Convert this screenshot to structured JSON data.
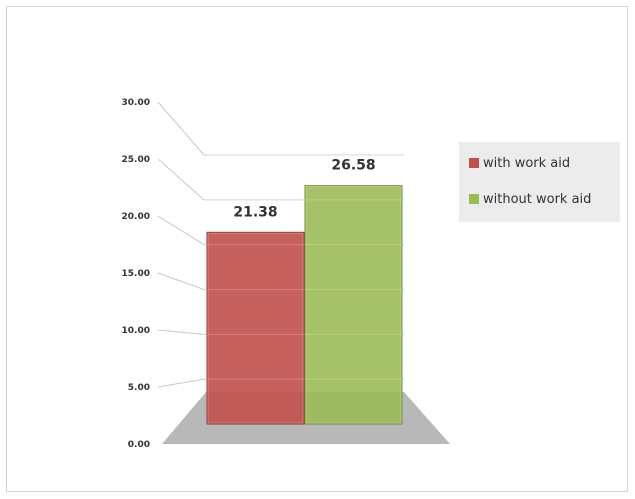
{
  "chart_data": {
    "type": "bar",
    "categories": [
      "with work aid",
      "without work aid"
    ],
    "values": [
      21.38,
      26.58
    ],
    "data_labels": [
      "21.38",
      "26.58"
    ],
    "ylim": [
      0,
      30
    ],
    "yticks": [
      "0.00",
      "5.00",
      "10.00",
      "15.00",
      "20.00",
      "25.00",
      "30.00"
    ],
    "legend_position": "right",
    "grid": true,
    "colors": {
      "with work aid": "#c0504d",
      "without work aid": "#9bbb59"
    }
  },
  "legend": {
    "items": [
      {
        "label": "with work aid",
        "color": "#c0504d"
      },
      {
        "label": "without work aid",
        "color": "#9bbb59"
      }
    ]
  }
}
